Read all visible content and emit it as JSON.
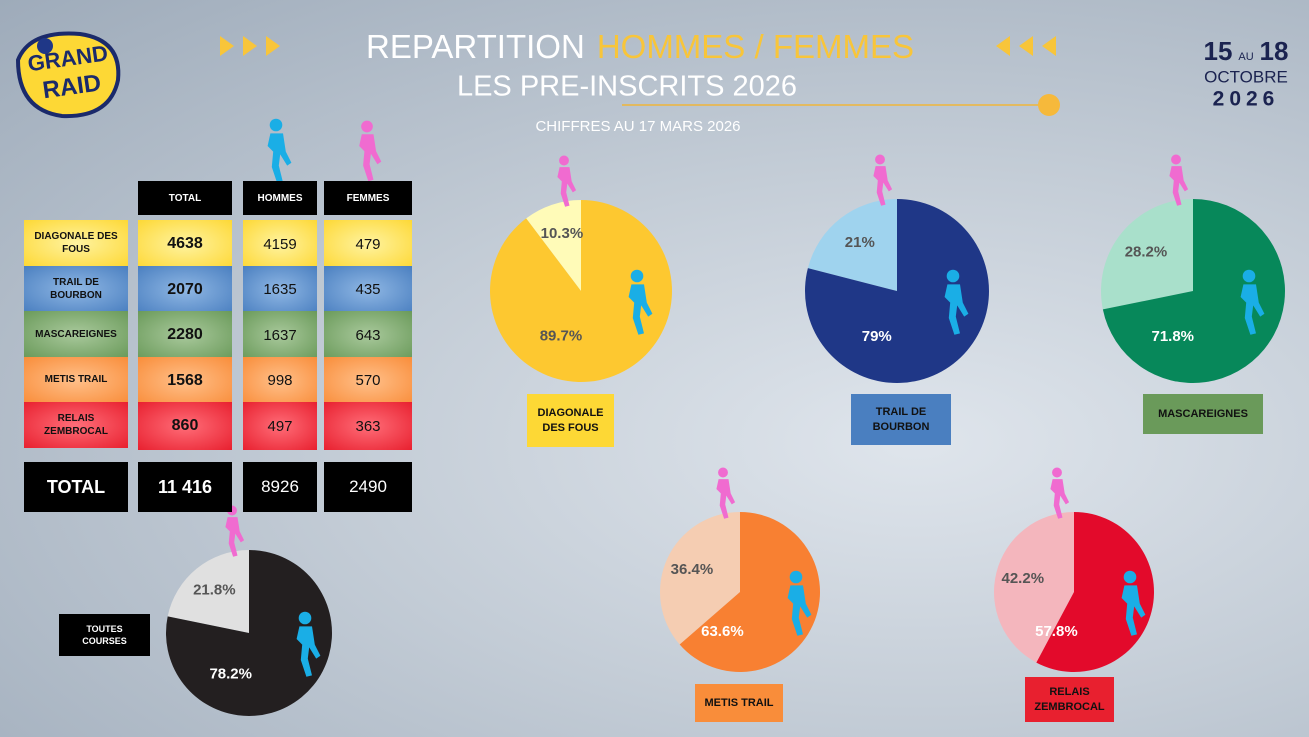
{
  "header": {
    "title": "REPARTITION",
    "title_highlight": "HOMMES / FEMMES",
    "subtitle": "LES PRE-INSCRITS 2026",
    "note": "CHIFFRES AU 17 MARS 2026",
    "logo": [
      "GRAND",
      "RAID"
    ],
    "dates": {
      "start": "15",
      "between": "AU",
      "end": "18",
      "month": "OCTOBRE",
      "year": "2026"
    }
  },
  "table": {
    "columns": [
      "TOTAL",
      "HOMMES",
      "FEMMES"
    ],
    "rows": [
      [
        "DIAGONALE DES FOUS",
        4638,
        4159,
        479
      ],
      [
        "TRAIL DE BOURBON",
        2070,
        1635,
        435
      ],
      [
        "MASCAREIGNES",
        2280,
        1637,
        643
      ],
      [
        "METIS TRAIL",
        1568,
        998,
        570
      ],
      [
        "RELAIS ZEMBROCAL",
        860,
        497,
        363
      ]
    ],
    "total": [
      "TOTAL",
      "11 416",
      8926,
      2490
    ]
  },
  "chart_data": [
    {
      "type": "pie",
      "title": "DIAGONALE DES FOUS",
      "values": [
        10.3,
        89.7
      ],
      "value_labels": [
        "10.3%",
        "89.7%"
      ],
      "colors": [
        "#fffbb8",
        "#fdc830"
      ],
      "label_colors": [
        "#555555",
        "#555555"
      ]
    },
    {
      "type": "pie",
      "title": "TRAIL DE BOURBON",
      "values": [
        21,
        79
      ],
      "value_labels": [
        "21%",
        "79%"
      ],
      "colors": [
        "#9fd3ee",
        "#1f3787"
      ],
      "label_colors": [
        "#555555",
        "#ffffff"
      ]
    },
    {
      "type": "pie",
      "title": "MASCAREIGNES",
      "values": [
        28.2,
        71.8
      ],
      "value_labels": [
        "28.2%",
        "71.8%"
      ],
      "colors": [
        "#a9e0cb",
        "#07885a"
      ],
      "label_colors": [
        "#555555",
        "#ffffff"
      ]
    },
    {
      "type": "pie",
      "title": "TOUTES COURSES",
      "values": [
        21.8,
        78.2
      ],
      "value_labels": [
        "21.8%",
        "78.2%"
      ],
      "colors": [
        "#e0e0e0",
        "#231f20"
      ],
      "label_colors": [
        "#555555",
        "#ffffff"
      ]
    },
    {
      "type": "pie",
      "title": "METIS TRAIL",
      "values": [
        36.4,
        63.6
      ],
      "value_labels": [
        "36.4%",
        "63.6%"
      ],
      "colors": [
        "#f5cdb2",
        "#f88032"
      ],
      "label_colors": [
        "#555555",
        "#ffffff"
      ]
    },
    {
      "type": "pie",
      "title": "RELAIS ZEMBROCAL",
      "values": [
        42.2,
        57.8
      ],
      "value_labels": [
        "42.2%",
        "57.8%"
      ],
      "colors": [
        "#f4b6bd",
        "#e30a2b"
      ],
      "label_colors": [
        "#555555",
        "#ffffff"
      ]
    }
  ]
}
